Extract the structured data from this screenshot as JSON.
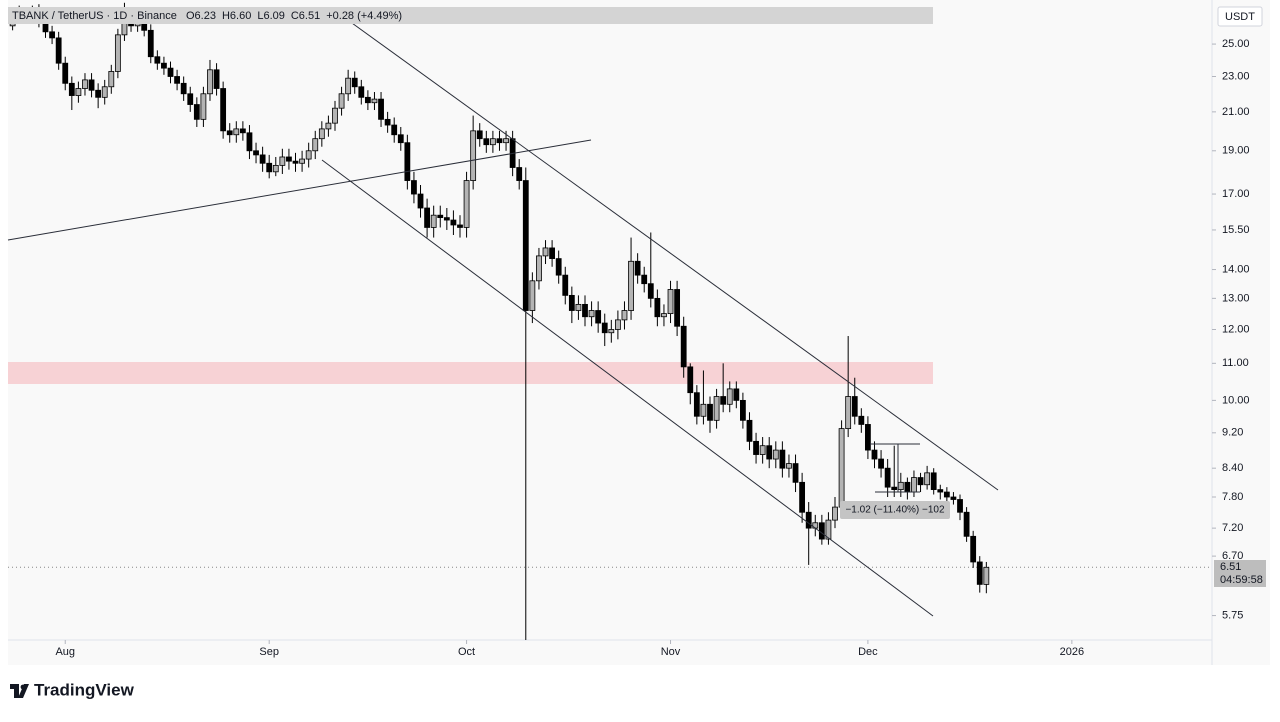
{
  "chart_data": {
    "type": "candlestick",
    "symbol": "TBANK / TetherUS · 1D · Binance",
    "ohlc_header": [
      "O6.23",
      "H6.60",
      "L6.09",
      "C6.51",
      "+0.28 (+4.49%)"
    ],
    "currency": "USDT",
    "price_tag": "6.51",
    "countdown": "04:59:58",
    "measure_label": "−1.02 (−11.40%) −102",
    "brand": "TradingView",
    "up_color": "#b4b4b4",
    "down_color": "#000000",
    "log_scale": true,
    "grid": false,
    "xlim": [
      -8.7,
      174.3
    ],
    "xticks": [
      {
        "value": 0,
        "label": "Aug"
      },
      {
        "value": 31,
        "label": "Sep"
      },
      {
        "value": 61,
        "label": "Oct"
      },
      {
        "value": 92,
        "label": "Nov"
      },
      {
        "value": 122,
        "label": "Dec"
      },
      {
        "value": 153,
        "label": "2026"
      }
    ],
    "ylim": [
      5.4,
      28
    ],
    "yticks": [
      {
        "value": 25,
        "label": "25.00"
      },
      {
        "value": 23,
        "label": "23.00"
      },
      {
        "value": 21,
        "label": "21.00"
      },
      {
        "value": 19,
        "label": "19.00"
      },
      {
        "value": 17,
        "label": "17.00"
      },
      {
        "value": 15.5,
        "label": "15.50"
      },
      {
        "value": 14,
        "label": "14.00"
      },
      {
        "value": 13,
        "label": "13.00"
      },
      {
        "value": 12,
        "label": "12.00"
      },
      {
        "value": 11,
        "label": "11.00"
      },
      {
        "value": 10,
        "label": "10.00"
      },
      {
        "value": 9.2,
        "label": "9.20"
      },
      {
        "value": 8.4,
        "label": "8.40"
      },
      {
        "value": 7.8,
        "label": "7.80"
      },
      {
        "value": 7.2,
        "label": "7.20"
      },
      {
        "value": 6.7,
        "label": "6.70"
      },
      {
        "value": 5.75,
        "label": "5.75"
      }
    ],
    "x": [
      -8,
      -7,
      -6,
      -5,
      -4,
      -3,
      -2,
      -1,
      0,
      1,
      2,
      3,
      4,
      5,
      6,
      7,
      8,
      9,
      10,
      11,
      12,
      13,
      14,
      15,
      16,
      17,
      18,
      19,
      20,
      21,
      22,
      23,
      24,
      25,
      26,
      27,
      28,
      29,
      30,
      31,
      32,
      33,
      34,
      35,
      36,
      37,
      38,
      39,
      40,
      41,
      42,
      43,
      44,
      45,
      46,
      47,
      48,
      49,
      50,
      51,
      52,
      53,
      54,
      55,
      56,
      57,
      58,
      59,
      60,
      61,
      62,
      63,
      64,
      65,
      66,
      67,
      68,
      69,
      70,
      71,
      72,
      73,
      74,
      75,
      76,
      77,
      78,
      79,
      80,
      81,
      82,
      83,
      84,
      85,
      86,
      87,
      88,
      89,
      90,
      91,
      92,
      93,
      94,
      95,
      96,
      97,
      98,
      99,
      100,
      101,
      102,
      103,
      104,
      105,
      106,
      107,
      108,
      109,
      110,
      111,
      112,
      113,
      114,
      115,
      116,
      117,
      118,
      119,
      120,
      121,
      122,
      123,
      124,
      125,
      126,
      127,
      128,
      129,
      130,
      131,
      132,
      133,
      134,
      135,
      136,
      137,
      138,
      139,
      140
    ],
    "open": [
      26.2,
      26.8,
      27.2,
      26.9,
      27.3,
      26.5,
      25.8,
      25.4,
      23.8,
      22.6,
      21.9,
      22.3,
      22.8,
      22.2,
      21.8,
      22.4,
      23.3,
      25.6,
      26.8,
      26.2,
      26.6,
      25.9,
      24.2,
      23.8,
      23.5,
      23.0,
      22.6,
      22.0,
      21.4,
      20.6,
      22.0,
      23.4,
      22.3,
      20.0,
      19.8,
      20.1,
      19.9,
      19.0,
      18.8,
      18.4,
      18.0,
      18.3,
      18.7,
      18.5,
      18.4,
      18.6,
      19.0,
      19.6,
      20.1,
      20.4,
      21.2,
      22.0,
      22.9,
      22.4,
      21.8,
      21.5,
      21.7,
      20.6,
      20.3,
      19.8,
      19.4,
      17.6,
      17.0,
      16.4,
      15.6,
      16.1,
      16.0,
      15.9,
      15.7,
      15.6,
      17.6,
      20.0,
      19.6,
      19.3,
      19.6,
      19.4,
      19.6,
      18.2,
      17.6,
      12.6,
      13.6,
      14.5,
      14.8,
      14.4,
      13.8,
      13.1,
      12.6,
      12.8,
      12.4,
      12.6,
      12.2,
      11.9,
      12.0,
      12.3,
      12.6,
      14.3,
      13.8,
      13.5,
      13.0,
      12.4,
      12.5,
      13.3,
      12.1,
      10.9,
      10.2,
      9.6,
      9.9,
      9.5,
      10.1,
      9.9,
      10.3,
      10.0,
      9.5,
      9.0,
      8.7,
      8.9,
      8.6,
      8.8,
      8.4,
      8.5,
      8.1,
      7.5,
      7.2,
      7.3,
      7.0,
      7.35,
      7.6,
      9.3,
      10.1,
      9.6,
      9.4,
      8.8,
      8.6,
      8.4,
      8.0,
      7.95,
      8.1,
      7.9,
      8.2,
      8.05,
      8.3,
      7.95,
      7.9,
      7.8,
      7.75,
      7.5,
      7.05,
      6.6,
      6.23
    ],
    "high": [
      27.0,
      27.6,
      27.5,
      27.6,
      27.7,
      26.9,
      26.2,
      25.8,
      24.2,
      23.0,
      22.7,
      23.2,
      23.2,
      22.6,
      22.8,
      23.7,
      26.0,
      27.8,
      27.2,
      27.0,
      27.0,
      26.3,
      24.6,
      24.2,
      23.9,
      23.4,
      23.0,
      22.4,
      21.8,
      22.4,
      24.0,
      23.8,
      22.7,
      20.4,
      20.5,
      20.5,
      20.3,
      19.4,
      19.2,
      18.8,
      18.7,
      19.1,
      19.1,
      18.9,
      19.0,
      19.4,
      20.0,
      20.5,
      20.8,
      21.6,
      22.4,
      23.4,
      23.3,
      22.8,
      22.2,
      22.1,
      22.1,
      21.0,
      20.7,
      20.2,
      19.8,
      18.0,
      17.4,
      16.8,
      16.5,
      16.5,
      16.4,
      16.3,
      16.1,
      18.0,
      20.8,
      20.4,
      20.0,
      20.0,
      20.0,
      20.0,
      20.0,
      18.6,
      18.2,
      13.9,
      14.8,
      15.1,
      15.1,
      14.7,
      14.1,
      13.4,
      13.1,
      13.1,
      12.9,
      12.9,
      12.5,
      12.3,
      12.6,
      12.9,
      15.2,
      14.6,
      14.1,
      15.4,
      13.3,
      12.8,
      13.6,
      13.6,
      12.4,
      11.0,
      10.4,
      10.8,
      10.1,
      10.3,
      11.0,
      10.5,
      10.5,
      10.2,
      9.7,
      9.2,
      9.1,
      9.1,
      9.0,
      9.0,
      8.7,
      8.7,
      8.3,
      7.7,
      7.45,
      7.45,
      7.5,
      7.8,
      9.5,
      11.8,
      10.6,
      9.8,
      9.6,
      9.0,
      8.8,
      8.6,
      8.9,
      8.3,
      8.2,
      8.35,
      8.3,
      8.45,
      8.4,
      8.05,
      8.0,
      7.9,
      7.85,
      7.6,
      7.15,
      6.7,
      6.6
    ],
    "low": [
      25.9,
      26.5,
      26.6,
      26.6,
      26.1,
      25.4,
      25.0,
      23.4,
      22.2,
      21.1,
      21.5,
      21.9,
      21.8,
      21.2,
      21.4,
      22.0,
      22.9,
      25.2,
      25.8,
      25.8,
      25.5,
      23.8,
      23.4,
      23.1,
      22.6,
      22.2,
      21.6,
      21.0,
      20.2,
      20.2,
      21.6,
      21.9,
      19.6,
      19.4,
      19.4,
      19.5,
      18.6,
      18.4,
      18.0,
      17.7,
      17.8,
      17.9,
      18.1,
      18.0,
      18.0,
      18.2,
      18.6,
      19.2,
      19.7,
      20.0,
      20.8,
      21.6,
      22.0,
      21.4,
      21.1,
      21.1,
      20.2,
      19.9,
      19.4,
      19.0,
      17.2,
      16.6,
      16.0,
      15.2,
      15.2,
      15.6,
      15.5,
      15.3,
      15.2,
      15.2,
      17.2,
      19.2,
      18.9,
      18.9,
      19.0,
      19.0,
      17.8,
      17.2,
      5.2,
      12.2,
      13.3,
      14.2,
      14.1,
      13.5,
      12.8,
      12.2,
      12.3,
      12.1,
      12.1,
      11.9,
      11.5,
      11.6,
      11.7,
      12.0,
      12.3,
      13.5,
      13.2,
      12.7,
      12.1,
      12.1,
      12.2,
      11.8,
      10.6,
      9.9,
      9.4,
      9.4,
      9.2,
      9.3,
      9.7,
      9.7,
      9.8,
      9.3,
      8.8,
      8.5,
      8.5,
      8.4,
      8.4,
      8.2,
      8.2,
      7.9,
      7.3,
      6.55,
      7.05,
      6.9,
      6.9,
      7.2,
      7.5,
      9.1,
      9.4,
      9.2,
      8.6,
      8.4,
      8.2,
      7.8,
      7.8,
      7.8,
      7.75,
      7.8,
      7.9,
      7.95,
      7.85,
      7.75,
      7.7,
      7.65,
      7.35,
      6.95,
      6.5,
      6.1,
      6.09
    ],
    "close": [
      26.8,
      27.2,
      26.9,
      27.3,
      26.5,
      25.8,
      25.4,
      23.8,
      22.6,
      21.9,
      22.3,
      22.8,
      22.2,
      21.8,
      22.4,
      23.3,
      25.6,
      26.8,
      26.2,
      26.6,
      25.9,
      24.2,
      23.8,
      23.5,
      23.0,
      22.6,
      22.0,
      21.4,
      20.6,
      22.0,
      23.4,
      22.3,
      20.0,
      19.8,
      20.1,
      19.9,
      19.0,
      18.8,
      18.4,
      18.0,
      18.3,
      18.7,
      18.5,
      18.4,
      18.6,
      19.0,
      19.6,
      20.1,
      20.4,
      21.2,
      22.0,
      22.9,
      22.4,
      21.8,
      21.5,
      21.7,
      20.6,
      20.3,
      19.8,
      19.4,
      17.6,
      17.0,
      16.4,
      15.6,
      16.1,
      16.0,
      15.9,
      15.7,
      15.6,
      17.6,
      20.0,
      19.6,
      19.3,
      19.6,
      19.4,
      19.6,
      18.2,
      17.6,
      12.6,
      13.6,
      14.5,
      14.8,
      14.4,
      13.8,
      13.1,
      12.6,
      12.8,
      12.4,
      12.6,
      12.2,
      11.9,
      12.0,
      12.3,
      12.6,
      14.3,
      13.8,
      13.5,
      13.0,
      12.4,
      12.5,
      13.3,
      12.1,
      10.9,
      10.2,
      9.6,
      9.9,
      9.5,
      10.1,
      9.9,
      10.3,
      10.0,
      9.5,
      9.0,
      8.7,
      8.9,
      8.6,
      8.8,
      8.4,
      8.5,
      8.1,
      7.5,
      7.2,
      7.3,
      7.0,
      7.35,
      7.6,
      9.3,
      10.1,
      9.6,
      9.4,
      8.8,
      8.6,
      8.4,
      8.0,
      7.95,
      8.1,
      7.9,
      8.2,
      8.05,
      8.3,
      7.95,
      7.9,
      7.8,
      7.75,
      7.5,
      7.05,
      6.6,
      6.23,
      6.51
    ]
  }
}
